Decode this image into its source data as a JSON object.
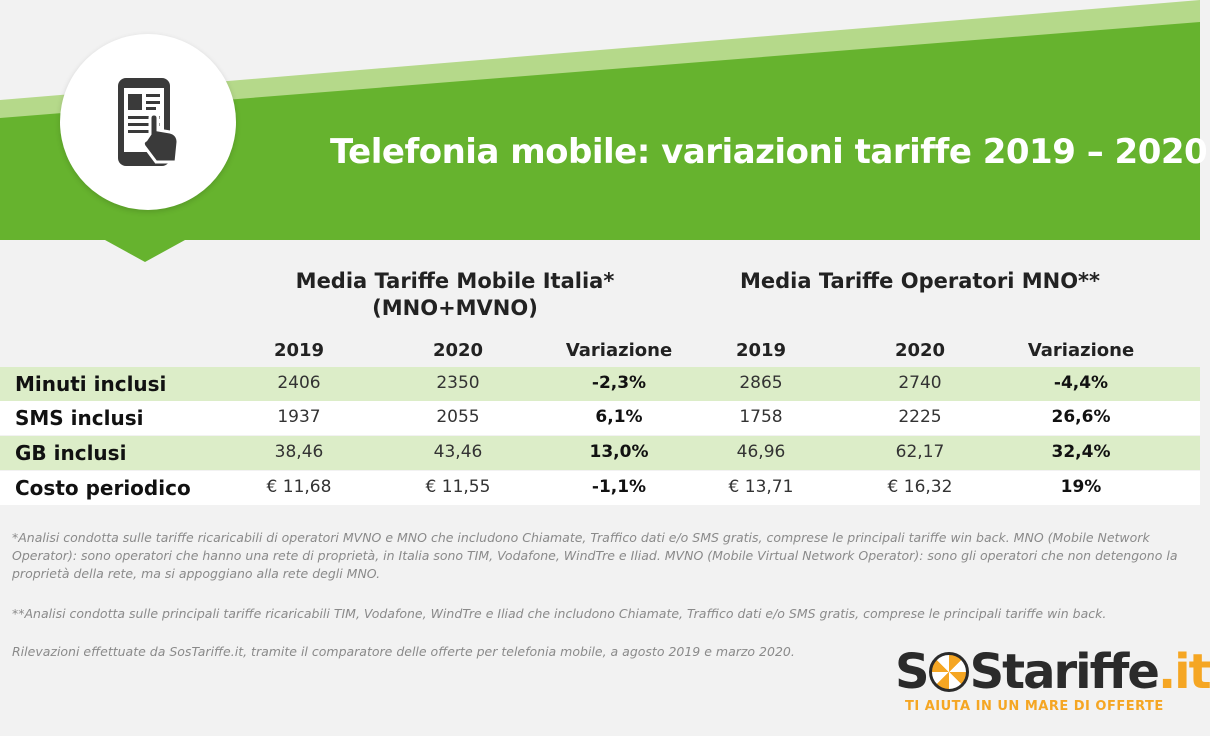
{
  "banner": {
    "title": "Telefonia mobile: variazioni tariffe 2019 – 2020",
    "icon": "smartphone-touch-icon",
    "colors": {
      "green": "#66b32e",
      "light_green": "#b5d98a"
    }
  },
  "table": {
    "group_italia": {
      "line1": "Media Tariffe Mobile Italia*",
      "line2": "(MNO+MVNO)"
    },
    "group_mno": {
      "line1": "Media Tariffe Operatori MNO**"
    },
    "columns": [
      "2019",
      "2020",
      "Variazione",
      "2019",
      "2020",
      "Variazione"
    ],
    "rows": [
      {
        "label": "Minuti inclusi",
        "values": [
          "2406",
          "2350",
          "-2,3%",
          "2865",
          "2740",
          "-4,4%"
        ]
      },
      {
        "label": "SMS inclusi",
        "values": [
          "1937",
          "2055",
          "6,1%",
          "1758",
          "2225",
          "26,6%"
        ]
      },
      {
        "label": "GB inclusi",
        "values": [
          "38,46",
          "43,46",
          "13,0%",
          "46,96",
          "62,17",
          "32,4%"
        ]
      },
      {
        "label": "Costo periodico",
        "values": [
          "€ 11,68",
          "€ 11,55",
          "-1,1%",
          "€ 13,71",
          "€ 16,32",
          "19%"
        ]
      }
    ],
    "row_colors": {
      "highlight": "#dcedc8",
      "plain": "#ffffff"
    }
  },
  "footnotes": {
    "note1": "*Analisi condotta sulle tariffe ricaricabili di operatori MVNO e MNO che includono Chiamate, Traffico dati e/o SMS gratis, comprese le principali tariffe win back. MNO (Mobile Network Operator): sono operatori che hanno una rete di proprietà, in Italia sono TIM, Vodafone, WindTre e Iliad. MVNO (Mobile Virtual Network Operator): sono gli operatori che non detengono la proprietà della rete, ma si appoggiano alla rete degli MNO.",
    "note2": "**Analisi condotta sulle principali tariffe ricaricabili TIM, Vodafone, WindTre e Iliad che includono Chiamate, Traffico dati e/o SMS gratis, comprese le principali tariffe win back.",
    "note3": "Rilevazioni effettuate da SosTariffe.it, tramite il comparatore delle offerte per telefonia mobile, a agosto 2019 e marzo 2020."
  },
  "logo": {
    "part1": "S",
    "part2": "Stariffe",
    "part3": ".it",
    "tagline": "TI AIUTA IN UN MARE DI OFFERTE",
    "accent_color": "#f5a623"
  }
}
